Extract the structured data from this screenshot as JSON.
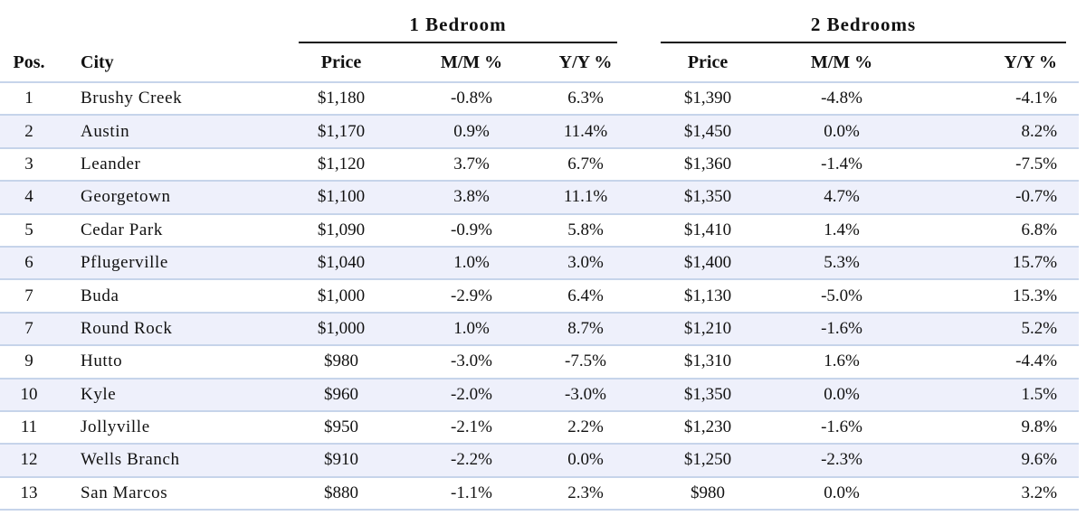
{
  "groups": {
    "one_bedroom": "1 Bedroom",
    "two_bedrooms": "2 Bedrooms"
  },
  "headers": {
    "pos": "Pos.",
    "city": "City",
    "price": "Price",
    "mm": "M/M %",
    "yy": "Y/Y %"
  },
  "rows": [
    {
      "pos": "1",
      "city": "Brushy Creek",
      "p1": "$1,180",
      "m1": "-0.8%",
      "y1": "6.3%",
      "p2": "$1,390",
      "m2": "-4.8%",
      "y2": "-4.1%"
    },
    {
      "pos": "2",
      "city": "Austin",
      "p1": "$1,170",
      "m1": "0.9%",
      "y1": "11.4%",
      "p2": "$1,450",
      "m2": "0.0%",
      "y2": "8.2%"
    },
    {
      "pos": "3",
      "city": "Leander",
      "p1": "$1,120",
      "m1": "3.7%",
      "y1": "6.7%",
      "p2": "$1,360",
      "m2": "-1.4%",
      "y2": "-7.5%"
    },
    {
      "pos": "4",
      "city": "Georgetown",
      "p1": "$1,100",
      "m1": "3.8%",
      "y1": "11.1%",
      "p2": "$1,350",
      "m2": "4.7%",
      "y2": "-0.7%"
    },
    {
      "pos": "5",
      "city": "Cedar Park",
      "p1": "$1,090",
      "m1": "-0.9%",
      "y1": "5.8%",
      "p2": "$1,410",
      "m2": "1.4%",
      "y2": "6.8%"
    },
    {
      "pos": "6",
      "city": "Pflugerville",
      "p1": "$1,040",
      "m1": "1.0%",
      "y1": "3.0%",
      "p2": "$1,400",
      "m2": "5.3%",
      "y2": "15.7%"
    },
    {
      "pos": "7",
      "city": "Buda",
      "p1": "$1,000",
      "m1": "-2.9%",
      "y1": "6.4%",
      "p2": "$1,130",
      "m2": "-5.0%",
      "y2": "15.3%"
    },
    {
      "pos": "7",
      "city": "Round Rock",
      "p1": "$1,000",
      "m1": "1.0%",
      "y1": "8.7%",
      "p2": "$1,210",
      "m2": "-1.6%",
      "y2": "5.2%"
    },
    {
      "pos": "9",
      "city": "Hutto",
      "p1": "$980",
      "m1": "-3.0%",
      "y1": "-7.5%",
      "p2": "$1,310",
      "m2": "1.6%",
      "y2": "-4.4%"
    },
    {
      "pos": "10",
      "city": "Kyle",
      "p1": "$960",
      "m1": "-2.0%",
      "y1": "-3.0%",
      "p2": "$1,350",
      "m2": "0.0%",
      "y2": "1.5%"
    },
    {
      "pos": "11",
      "city": "Jollyville",
      "p1": "$950",
      "m1": "-2.1%",
      "y1": "2.2%",
      "p2": "$1,230",
      "m2": "-1.6%",
      "y2": "9.8%"
    },
    {
      "pos": "12",
      "city": "Wells Branch",
      "p1": "$910",
      "m1": "-2.2%",
      "y1": "0.0%",
      "p2": "$1,250",
      "m2": "-2.3%",
      "y2": "9.6%"
    },
    {
      "pos": "13",
      "city": "San Marcos",
      "p1": "$880",
      "m1": "-1.1%",
      "y1": "2.3%",
      "p2": "$980",
      "m2": "0.0%",
      "y2": "3.2%"
    }
  ]
}
